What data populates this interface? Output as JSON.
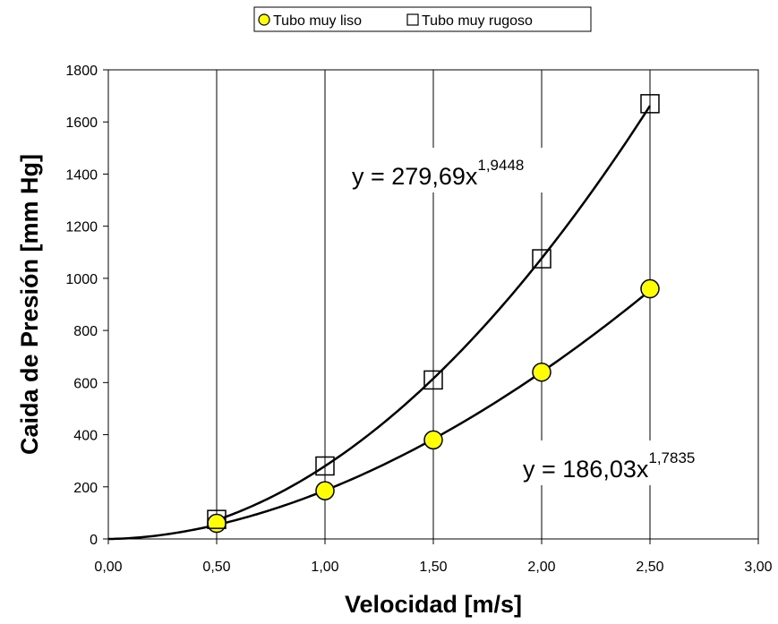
{
  "chart_data": {
    "type": "scatter",
    "xlabel": "Velocidad [m/s]",
    "ylabel": "Caida de Presión [mm Hg]",
    "xlim": [
      0,
      3
    ],
    "ylim": [
      0,
      1800
    ],
    "x_ticks": [
      "0,00",
      "0,50",
      "1,00",
      "1,50",
      "2,00",
      "2,50",
      "3,00"
    ],
    "y_ticks": [
      "0",
      "200",
      "400",
      "600",
      "800",
      "1000",
      "1200",
      "1400",
      "1600",
      "1800"
    ],
    "grid": "vertical",
    "legend_position": "top-center",
    "series": [
      {
        "name": "Tubo muy liso",
        "marker": "circle",
        "color": "#ffff00",
        "x": [
          0.5,
          1.0,
          1.5,
          2.0,
          2.5
        ],
        "y": [
          60,
          185,
          380,
          640,
          960
        ],
        "trendline": {
          "type": "power",
          "a": 186.03,
          "b": 1.7835,
          "from": 0,
          "to": 2.5
        },
        "equation": {
          "base": "y = 186,03x",
          "exponent": "1,7835"
        }
      },
      {
        "name": "Tubo muy rugoso",
        "marker": "square",
        "color": "#ffffff",
        "x": [
          0.5,
          1.0,
          1.5,
          2.0,
          2.5
        ],
        "y": [
          75,
          280,
          610,
          1075,
          1670
        ],
        "trendline": {
          "type": "power",
          "a": 279.69,
          "b": 1.9448,
          "from": 0.5,
          "to": 2.5
        },
        "equation": {
          "base": "y = 279,69x",
          "exponent": "1,9448"
        }
      }
    ]
  }
}
